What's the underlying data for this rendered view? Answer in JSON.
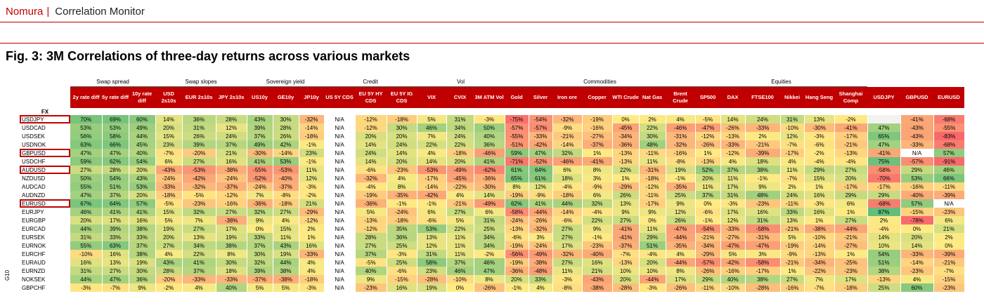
{
  "header": {
    "brand": "Nomura",
    "separator": "|",
    "report": "Correlation Monitor"
  },
  "figure_title": "Fig. 3: 3M Correlations of three-day returns across various markets",
  "row_group_label": "G10",
  "fx_label": "FX",
  "groups": [
    {
      "label": "",
      "span": 1
    },
    {
      "label": "Swap spread",
      "span": 3
    },
    {
      "label": "Swap slopes",
      "span": 3
    },
    {
      "label": "Sovereign yield",
      "span": 3
    },
    {
      "label": "Credit",
      "span": 3
    },
    {
      "label": "Vol",
      "span": 3
    },
    {
      "label": "Commodities",
      "span": 7
    },
    {
      "label": "Equities",
      "span": 6
    },
    {
      "label": "",
      "span": 3
    }
  ],
  "columns": [
    "",
    "2y rate diff",
    "5y rate diff",
    "10y rate diff",
    "USD 2s10s",
    "EUR 2s10s",
    "JPY 2s10s",
    "US10y",
    "GE10y",
    "JP10y",
    "US 5Y CDS",
    "EU 5Y HY CDS",
    "EU 5Y IG CDS",
    "VIX",
    "CVIX",
    "3M ATM Vol",
    "Gold",
    "Silver",
    "Iron ore",
    "Copper",
    "WTI Crude",
    "Nat Gas",
    "Brent Crude",
    "SP500",
    "DAX",
    "FTSE100",
    "Nikkei",
    "Hang Seng",
    "Shanghai Comp",
    "USDJPY",
    "GBPUSD",
    "EURUSD"
  ],
  "highlighted_rows": [
    "USDJPY",
    "GBPUSD",
    "AUDUSD",
    "EURUSD"
  ],
  "rows": [
    {
      "label": "USDJPY",
      "values": [
        "70%",
        "69%",
        "60%",
        "14%",
        "36%",
        "28%",
        "43%",
        "30%",
        "-32%",
        "N/A",
        "-12%",
        "-18%",
        "5%",
        "31%",
        "-3%",
        "-75%",
        "-54%",
        "-32%",
        "-19%",
        "0%",
        "2%",
        "4%",
        "-5%",
        "14%",
        "24%",
        "31%",
        "13%",
        "-2%",
        "",
        "-41%",
        "-68%"
      ]
    },
    {
      "label": "USDCAD",
      "values": [
        "53%",
        "53%",
        "49%",
        "20%",
        "31%",
        "12%",
        "39%",
        "28%",
        "-14%",
        "N/A",
        "-12%",
        "30%",
        "46%",
        "34%",
        "50%",
        "-57%",
        "-57%",
        "-9%",
        "-16%",
        "-45%",
        "22%",
        "-46%",
        "-47%",
        "-26%",
        "-33%",
        "-10%",
        "-30%",
        "-41%",
        "47%",
        "-43%",
        "-55%"
      ]
    },
    {
      "label": "USDSEK",
      "values": [
        "56%",
        "58%",
        "44%",
        "15%",
        "26%",
        "24%",
        "37%",
        "26%",
        "-18%",
        "N/A",
        "20%",
        "20%",
        "7%",
        "24%",
        "40%",
        "-55%",
        "-33%",
        "-21%",
        "-27%",
        "-34%",
        "30%",
        "-31%",
        "-12%",
        "-13%",
        "2%",
        "12%",
        "-3%",
        "-17%",
        "65%",
        "-43%",
        "-83%"
      ]
    },
    {
      "label": "USDNOK",
      "values": [
        "63%",
        "66%",
        "45%",
        "23%",
        "39%",
        "37%",
        "49%",
        "42%",
        "-1%",
        "N/A",
        "14%",
        "24%",
        "22%",
        "22%",
        "36%",
        "-51%",
        "-42%",
        "-14%",
        "-37%",
        "-36%",
        "48%",
        "-32%",
        "-26%",
        "-33%",
        "-21%",
        "-7%",
        "-6%",
        "-21%",
        "47%",
        "-33%",
        "-68%"
      ]
    },
    {
      "label": "GBPUSD",
      "values": [
        "47%",
        "47%",
        "40%",
        "-7%",
        "-20%",
        "21%",
        "-30%",
        "-14%",
        "23%",
        "N/A",
        "24%",
        "14%",
        "4%",
        "-18%",
        "-46%",
        "59%",
        "47%",
        "32%",
        "1%",
        "-13%",
        "-11%",
        "-16%",
        "1%",
        "-12%",
        "-39%",
        "-17%",
        "-2%",
        "-13%",
        "-41%",
        "N/A",
        "57%"
      ]
    },
    {
      "label": "USDCHF",
      "values": [
        "59%",
        "62%",
        "54%",
        "6%",
        "27%",
        "16%",
        "41%",
        "53%",
        "-1%",
        "N/A",
        "14%",
        "20%",
        "14%",
        "20%",
        "41%",
        "-71%",
        "-52%",
        "-46%",
        "-41%",
        "-13%",
        "11%",
        "-8%",
        "-13%",
        "4%",
        "18%",
        "4%",
        "-4%",
        "-4%",
        "75%",
        "-57%",
        "-91%"
      ]
    },
    {
      "label": "AUDUSD",
      "values": [
        "27%",
        "28%",
        "20%",
        "-43%",
        "-53%",
        "-38%",
        "-55%",
        "-53%",
        "11%",
        "N/A",
        "-6%",
        "-23%",
        "-53%",
        "-49%",
        "-62%",
        "61%",
        "64%",
        "6%",
        "8%",
        "22%",
        "-31%",
        "19%",
        "52%",
        "37%",
        "38%",
        "11%",
        "29%",
        "27%",
        "-58%",
        "29%",
        "46%"
      ]
    },
    {
      "label": "NZDUSD",
      "values": [
        "50%",
        "54%",
        "43%",
        "-24%",
        "-42%",
        "-24%",
        "-52%",
        "-40%",
        "12%",
        "N/A",
        "-32%",
        "4%",
        "-17%",
        "-45%",
        "-36%",
        "65%",
        "61%",
        "18%",
        "3%",
        "1%",
        "-18%",
        "-1%",
        "20%",
        "11%",
        "-1%",
        "-7%",
        "15%",
        "20%",
        "-70%",
        "53%",
        "66%"
      ]
    },
    {
      "label": "AUDCAD",
      "values": [
        "55%",
        "51%",
        "53%",
        "-33%",
        "-32%",
        "-37%",
        "-24%",
        "-37%",
        "-3%",
        "N/A",
        "-4%",
        "8%",
        "-14%",
        "-22%",
        "-30%",
        "8%",
        "12%",
        "-4%",
        "-9%",
        "-29%",
        "-12%",
        "-35%",
        "11%",
        "17%",
        "9%",
        "2%",
        "1%",
        "-17%",
        "-17%",
        "-16%",
        "-11%"
      ]
    },
    {
      "label": "AUDNZD",
      "values": [
        "47%",
        "37%",
        "20%",
        "-18%",
        "-5%",
        "-12%",
        "7%",
        "-8%",
        "-2%",
        "N/A",
        "-19%",
        "-35%",
        "-42%",
        "4%",
        "14%",
        "-19%",
        "-9%",
        "-18%",
        "6%",
        "26%",
        "-11%",
        "25%",
        "37%",
        "31%",
        "48%",
        "24%",
        "16%",
        "29%",
        "29%",
        "-40%",
        "-39%"
      ]
    },
    {
      "label": "EURUSD",
      "values": [
        "67%",
        "64%",
        "57%",
        "-5%",
        "-23%",
        "-16%",
        "-36%",
        "-18%",
        "21%",
        "N/A",
        "-36%",
        "-1%",
        "-1%",
        "-21%",
        "-49%",
        "62%",
        "41%",
        "44%",
        "32%",
        "13%",
        "-17%",
        "9%",
        "0%",
        "-3%",
        "-23%",
        "-11%",
        "-3%",
        "6%",
        "-68%",
        "57%",
        "N/A"
      ]
    },
    {
      "label": "EURJPY",
      "values": [
        "46%",
        "41%",
        "41%",
        "15%",
        "32%",
        "27%",
        "32%",
        "27%",
        "-29%",
        "N/A",
        "5%",
        "-24%",
        "6%",
        "27%",
        "6%",
        "-58%",
        "-44%",
        "-14%",
        "-4%",
        "9%",
        "9%",
        "12%",
        "-6%",
        "17%",
        "16%",
        "33%",
        "16%",
        "1%",
        "87%",
        "-15%",
        "-23%"
      ]
    },
    {
      "label": "EURGBP",
      "values": [
        "20%",
        "17%",
        "16%",
        "5%",
        "7%",
        "-38%",
        "9%",
        "4%",
        "-12%",
        "N/A",
        "-13%",
        "-18%",
        "-6%",
        "5%",
        "31%",
        "-24%",
        "-26%",
        "-6%",
        "22%",
        "27%",
        "0%",
        "26%",
        "-1%",
        "12%",
        "31%",
        "13%",
        "1%",
        "27%",
        "2%",
        "-78%",
        "6%"
      ]
    },
    {
      "label": "EURCAD",
      "values": [
        "44%",
        "39%",
        "38%",
        "19%",
        "27%",
        "17%",
        "0%",
        "15%",
        "2%",
        "N/A",
        "-12%",
        "35%",
        "53%",
        "22%",
        "25%",
        "-13%",
        "-32%",
        "27%",
        "9%",
        "-41%",
        "11%",
        "-47%",
        "-54%",
        "-33%",
        "-58%",
        "-21%",
        "-38%",
        "-44%",
        "-4%",
        "0%",
        "21%"
      ]
    },
    {
      "label": "EURSEK",
      "values": [
        "31%",
        "33%",
        "33%",
        "20%",
        "13%",
        "19%",
        "33%",
        "11%",
        "1%",
        "N/A",
        "28%",
        "36%",
        "13%",
        "11%",
        "34%",
        "-6%",
        "3%",
        "27%",
        "-1%",
        "-41%",
        "29%",
        "-44%",
        "-21%",
        "-27%",
        "-31%",
        "5%",
        "-10%",
        "-21%",
        "14%",
        "20%",
        "2%"
      ]
    },
    {
      "label": "EURNOK",
      "values": [
        "55%",
        "63%",
        "37%",
        "27%",
        "34%",
        "38%",
        "37%",
        "43%",
        "16%",
        "N/A",
        "27%",
        "25%",
        "12%",
        "11%",
        "34%",
        "-19%",
        "-24%",
        "17%",
        "-23%",
        "-37%",
        "51%",
        "-35%",
        "-34%",
        "-47%",
        "-47%",
        "-19%",
        "-14%",
        "-27%",
        "10%",
        "14%",
        "0%"
      ]
    },
    {
      "label": "EURCHF",
      "values": [
        "-10%",
        "16%",
        "38%",
        "4%",
        "22%",
        "8%",
        "30%",
        "19%",
        "-33%",
        "N/A",
        "37%",
        "-3%",
        "31%",
        "11%",
        "-2%",
        "-56%",
        "-49%",
        "-32%",
        "-40%",
        "-7%",
        "-4%",
        "4%",
        "-29%",
        "5%",
        "3%",
        "-9%",
        "-13%",
        "1%",
        "54%",
        "-33%",
        "-39%"
      ]
    },
    {
      "label": "EURAUD",
      "values": [
        "16%",
        "13%",
        "19%",
        "43%",
        "41%",
        "30%",
        "32%",
        "44%",
        "4%",
        "N/A",
        "-5%",
        "25%",
        "58%",
        "37%",
        "46%",
        "-19%",
        "-38%",
        "27%",
        "16%",
        "-13%",
        "20%",
        "-44%",
        "-57%",
        "-42%",
        "-58%",
        "-21%",
        "-34%",
        "-25%",
        "51%",
        "-14%",
        "-21%"
      ]
    },
    {
      "label": "EURNZD",
      "values": [
        "31%",
        "27%",
        "30%",
        "28%",
        "37%",
        "18%",
        "39%",
        "38%",
        "4%",
        "N/A",
        "40%",
        "-6%",
        "23%",
        "46%",
        "47%",
        "-36%",
        "-48%",
        "11%",
        "21%",
        "10%",
        "10%",
        "8%",
        "-26%",
        "-16%",
        "-17%",
        "1%",
        "-22%",
        "-23%",
        "38%",
        "-23%",
        "-7%"
      ]
    },
    {
      "label": "NOKSEK",
      "values": [
        "44%",
        "47%",
        "36%",
        "-20%",
        "-33%",
        "-33%",
        "-37%",
        "-38%",
        "-18%",
        "N/A",
        "9%",
        "-15%",
        "-28%",
        "-10%",
        "8%",
        "20%",
        "33%",
        "-3%",
        "-43%",
        "20%",
        "-44%",
        "17%",
        "29%",
        "40%",
        "38%",
        "27%",
        "7%",
        "17%",
        "-13%",
        "4%",
        "-15%"
      ]
    },
    {
      "label": "GBPCHF",
      "values": [
        "-3%",
        "-7%",
        "9%",
        "-2%",
        "4%",
        "40%",
        "5%",
        "5%",
        "-3%",
        "N/A",
        "-23%",
        "16%",
        "19%",
        "0%",
        "-26%",
        "-1%",
        "4%",
        "-8%",
        "-38%",
        "-28%",
        "-3%",
        "-26%",
        "-11%",
        "-10%",
        "-28%",
        "-16%",
        "-7%",
        "-18%",
        "25%",
        "60%",
        "-23%"
      ]
    }
  ]
}
